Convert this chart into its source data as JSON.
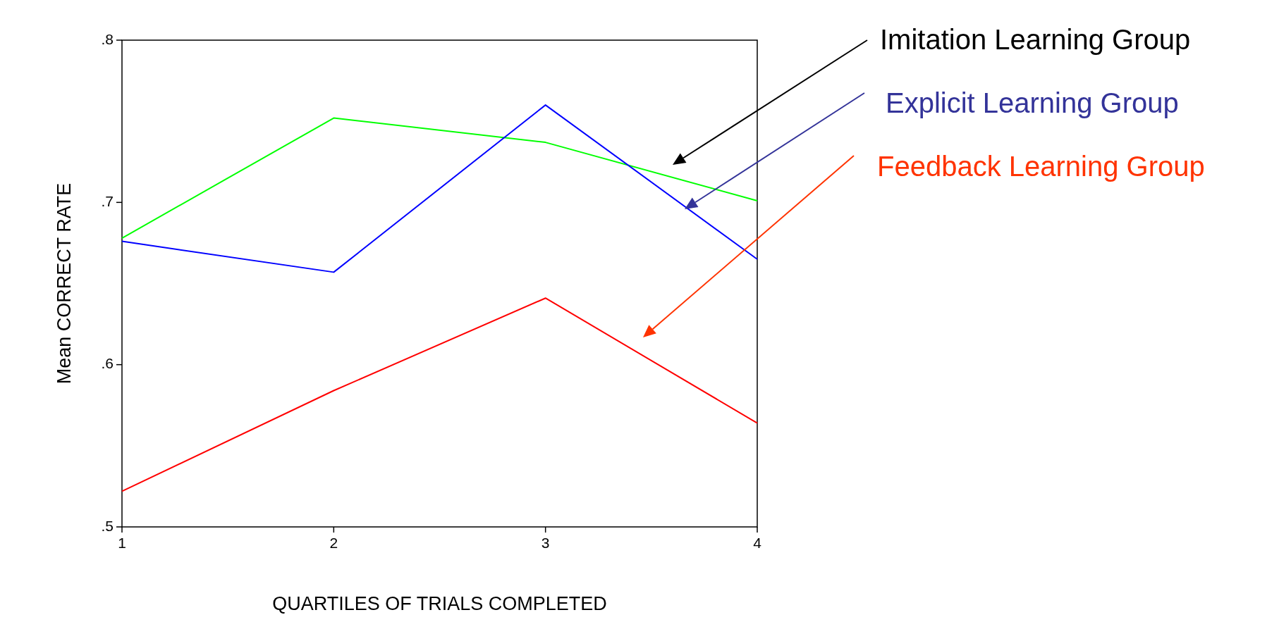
{
  "chart_data": {
    "type": "line",
    "xlabel": "QUARTILES OF TRIALS COMPLETED",
    "ylabel": "Mean CORRECT RATE",
    "x": [
      1,
      2,
      3,
      4
    ],
    "xlim": [
      1,
      4
    ],
    "xticks": [
      1,
      2,
      3,
      4
    ],
    "ylim": [
      0.5,
      0.8
    ],
    "yticks": [
      {
        "value": 0.5,
        "label": ".5"
      },
      {
        "value": 0.6,
        "label": ".6"
      },
      {
        "value": 0.7,
        "label": ".7"
      },
      {
        "value": 0.8,
        "label": ".8"
      }
    ],
    "legend": "right",
    "marker": "none",
    "series": [
      {
        "name": "Imitation Learning Group",
        "color": "#00ff00",
        "values": [
          0.678,
          0.752,
          0.737,
          0.701
        ]
      },
      {
        "name": "Explicit Learning Group",
        "color": "#0000ff",
        "values": [
          0.676,
          0.657,
          0.76,
          0.665
        ]
      },
      {
        "name": "Feedback Learning Group",
        "color": "#ff0000",
        "values": [
          0.522,
          0.584,
          0.641,
          0.564
        ]
      }
    ]
  }
}
